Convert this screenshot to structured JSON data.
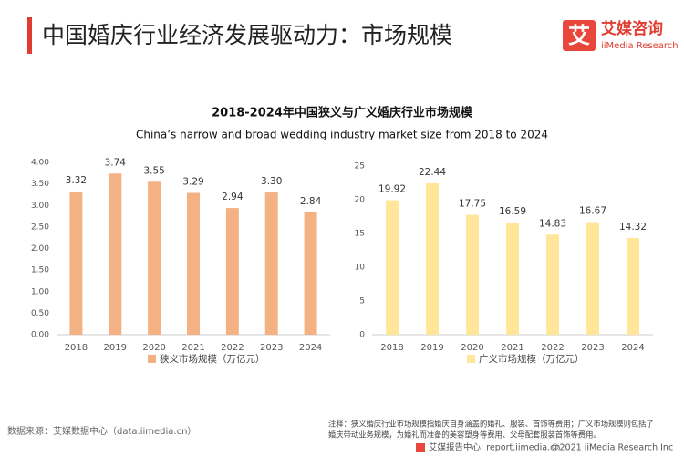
{
  "slide": {
    "title": "中国婚庆行业经济发展驱动力：市场规模",
    "logo_mark": "艾",
    "logo_cn": "艾媒咨询",
    "logo_en": "iiMedia Research",
    "chart_title": "2018-2024年中国狭义与广义婚庆行业市场规模",
    "chart_subtitle": "China’s narrow and broad wedding industry market size from 2018 to 2024",
    "source": "数据来源：艾媒数据中心（data.iimedia.cn）",
    "notes": [
      "注释：狭义婚庆行业市场规模指婚庆自身涵盖的婚礼、服装、首饰等费用；广义市场规模则包括了",
      "婚庆带动业务规模，为婚礼而准备的美容塑身等费用、父母配套服装首饰等费用。"
    ],
    "footer_site": "艾媒报告中心: report.iimedia.cn",
    "footer_copy": "©2021  iiMedia Research  Inc"
  },
  "chart_data": [
    {
      "type": "bar",
      "categories": [
        "2018",
        "2019",
        "2020",
        "2021",
        "2022",
        "2023",
        "2024"
      ],
      "series": [
        {
          "name": "狭义市场规模（万亿元）",
          "color": "#f4b183",
          "values": [
            3.32,
            3.74,
            3.55,
            3.29,
            2.94,
            3.3,
            2.84
          ],
          "value_labels": [
            "3.32",
            "3.74",
            "3.55",
            "3.29",
            "2.94",
            "3.30",
            "2.84"
          ]
        }
      ],
      "ylim": [
        0,
        4
      ],
      "yticks": [
        {
          "value": 0,
          "label": "0.00"
        },
        {
          "value": 0.5,
          "label": "0.50"
        },
        {
          "value": 1,
          "label": "1.00"
        },
        {
          "value": 1.5,
          "label": "1.50"
        },
        {
          "value": 2,
          "label": "2.00"
        },
        {
          "value": 2.5,
          "label": "2.50"
        },
        {
          "value": 3,
          "label": "3.00"
        },
        {
          "value": 3.5,
          "label": "3.50"
        },
        {
          "value": 4,
          "label": "4.00"
        }
      ],
      "grid": false
    },
    {
      "type": "bar",
      "categories": [
        "2018",
        "2019",
        "2020",
        "2021",
        "2022",
        "2023",
        "2024"
      ],
      "series": [
        {
          "name": "广义市场规模（万亿元）",
          "color": "#ffe699",
          "values": [
            19.92,
            22.44,
            17.75,
            16.59,
            14.83,
            16.67,
            14.32
          ]
        }
      ],
      "ylim": [
        0,
        25
      ],
      "yticks": [
        0,
        5,
        10,
        15,
        20,
        25
      ],
      "grid": false
    }
  ]
}
